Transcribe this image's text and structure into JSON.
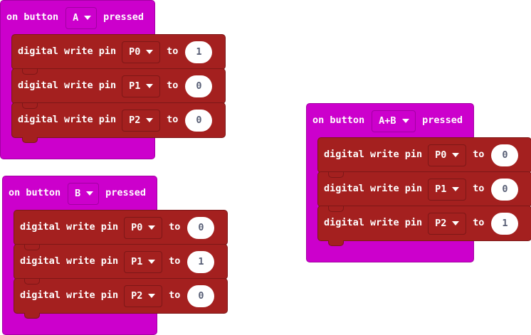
{
  "events": [
    {
      "prefix": "on button",
      "button": "A",
      "suffix": "pressed",
      "statements": [
        {
          "label": "digital write pin",
          "pin": "P0",
          "to": "to",
          "value": "1"
        },
        {
          "label": "digital write pin",
          "pin": "P1",
          "to": "to",
          "value": "0"
        },
        {
          "label": "digital write pin",
          "pin": "P2",
          "to": "to",
          "value": "0"
        }
      ]
    },
    {
      "prefix": "on button",
      "button": "B",
      "suffix": "pressed",
      "statements": [
        {
          "label": "digital write pin",
          "pin": "P0",
          "to": "to",
          "value": "0"
        },
        {
          "label": "digital write pin",
          "pin": "P1",
          "to": "to",
          "value": "1"
        },
        {
          "label": "digital write pin",
          "pin": "P2",
          "to": "to",
          "value": "0"
        }
      ]
    },
    {
      "prefix": "on button",
      "button": "A+B",
      "suffix": "pressed",
      "statements": [
        {
          "label": "digital write pin",
          "pin": "P0",
          "to": "to",
          "value": "0"
        },
        {
          "label": "digital write pin",
          "pin": "P1",
          "to": "to",
          "value": "0"
        },
        {
          "label": "digital write pin",
          "pin": "P2",
          "to": "to",
          "value": "1"
        }
      ]
    }
  ],
  "colors": {
    "event_block": "#cc00cc",
    "pin_block": "#a4201f",
    "value_field": "#ffffff",
    "value_text": "#575e75",
    "label_text": "#ffffff"
  },
  "icons": {
    "dropdown": "dropdown-triangle-icon"
  }
}
